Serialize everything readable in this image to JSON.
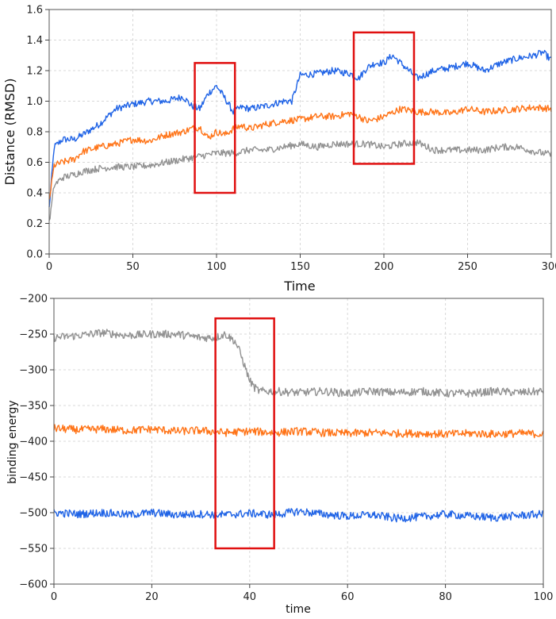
{
  "chart_data": [
    {
      "type": "line",
      "ylabel": "Distance (RMSD)",
      "xlabel": "Time",
      "xlim": [
        0,
        300
      ],
      "ylim": [
        0.0,
        1.6
      ],
      "xticks": [
        0,
        50,
        100,
        150,
        200,
        250,
        300
      ],
      "xtick_labels": [
        "0",
        "50",
        "100",
        "150",
        "200",
        "250",
        "300"
      ],
      "yticks": [
        0.0,
        0.2,
        0.4,
        0.6,
        0.8,
        1.0,
        1.2,
        1.4,
        1.6
      ],
      "ytick_labels": [
        "0.0",
        "0.2",
        "0.4",
        "0.6",
        "0.8",
        "1.0",
        "1.2",
        "1.4",
        "1.6"
      ],
      "grid": true,
      "series": [
        {
          "color": "#1f63e6",
          "x": [
            0,
            3,
            8,
            15,
            20,
            30,
            40,
            50,
            60,
            70,
            80,
            85,
            90,
            95,
            100,
            105,
            110,
            115,
            120,
            130,
            140,
            145,
            150,
            160,
            170,
            180,
            185,
            190,
            195,
            200,
            205,
            210,
            215,
            220,
            230,
            240,
            250,
            260,
            270,
            280,
            290,
            295,
            300
          ],
          "values": [
            0.3,
            0.7,
            0.75,
            0.75,
            0.78,
            0.85,
            0.95,
            0.98,
            1.0,
            1.0,
            1.03,
            0.97,
            0.95,
            1.05,
            1.1,
            1.02,
            0.93,
            0.96,
            0.95,
            0.97,
            1.0,
            1.0,
            1.17,
            1.18,
            1.2,
            1.18,
            1.15,
            1.22,
            1.25,
            1.25,
            1.3,
            1.25,
            1.2,
            1.15,
            1.2,
            1.22,
            1.25,
            1.2,
            1.25,
            1.28,
            1.3,
            1.32,
            1.27
          ]
        },
        {
          "color": "#ff7418",
          "x": [
            0,
            3,
            8,
            15,
            20,
            30,
            40,
            50,
            60,
            70,
            80,
            85,
            90,
            95,
            100,
            105,
            110,
            115,
            120,
            130,
            140,
            150,
            160,
            170,
            180,
            185,
            190,
            195,
            200,
            210,
            220,
            230,
            240,
            250,
            260,
            270,
            280,
            290,
            300
          ],
          "values": [
            0.35,
            0.58,
            0.6,
            0.62,
            0.67,
            0.7,
            0.72,
            0.75,
            0.74,
            0.78,
            0.8,
            0.82,
            0.83,
            0.76,
            0.8,
            0.78,
            0.82,
            0.84,
            0.82,
            0.85,
            0.87,
            0.88,
            0.9,
            0.9,
            0.92,
            0.9,
            0.87,
            0.88,
            0.9,
            0.95,
            0.93,
            0.93,
            0.92,
            0.95,
            0.93,
            0.94,
            0.95,
            0.96,
            0.95
          ]
        },
        {
          "color": "#929292",
          "x": [
            0,
            3,
            8,
            15,
            20,
            30,
            40,
            50,
            60,
            70,
            80,
            90,
            95,
            100,
            110,
            120,
            130,
            140,
            150,
            160,
            170,
            180,
            190,
            200,
            210,
            220,
            230,
            240,
            250,
            260,
            270,
            280,
            290,
            300
          ],
          "values": [
            0.2,
            0.45,
            0.5,
            0.52,
            0.54,
            0.56,
            0.57,
            0.57,
            0.58,
            0.6,
            0.62,
            0.64,
            0.65,
            0.66,
            0.66,
            0.68,
            0.68,
            0.7,
            0.72,
            0.7,
            0.72,
            0.72,
            0.72,
            0.7,
            0.72,
            0.73,
            0.68,
            0.68,
            0.68,
            0.68,
            0.7,
            0.7,
            0.67,
            0.65
          ]
        }
      ],
      "highlight_boxes": [
        {
          "x": [
            87,
            111
          ],
          "y": [
            0.4,
            1.25
          ]
        },
        {
          "x": [
            182,
            218
          ],
          "y": [
            0.59,
            1.45
          ]
        }
      ]
    },
    {
      "type": "line",
      "ylabel": "binding energy",
      "xlabel": "time",
      "xlim": [
        0,
        100
      ],
      "ylim": [
        -600,
        -200
      ],
      "xticks": [
        0,
        20,
        40,
        60,
        80,
        100
      ],
      "xtick_labels": [
        "0",
        "20",
        "40",
        "60",
        "80",
        "100"
      ],
      "yticks": [
        -600,
        -550,
        -500,
        -450,
        -400,
        -350,
        -300,
        -250,
        -200
      ],
      "ytick_labels": [
        "−600",
        "−550",
        "−500",
        "−450",
        "−400",
        "−350",
        "−300",
        "−250",
        "−200"
      ],
      "grid": true,
      "series": [
        {
          "color": "#929292",
          "x": [
            0,
            5,
            10,
            15,
            20,
            25,
            30,
            33,
            35,
            37,
            38,
            39,
            40,
            41,
            42,
            45,
            50,
            55,
            60,
            65,
            70,
            75,
            80,
            85,
            90,
            95,
            100
          ],
          "values": [
            -255,
            -252,
            -248,
            -252,
            -250,
            -250,
            -255,
            -255,
            -250,
            -260,
            -275,
            -295,
            -315,
            -325,
            -330,
            -330,
            -332,
            -330,
            -333,
            -330,
            -332,
            -330,
            -333,
            -333,
            -330,
            -332,
            -330
          ]
        },
        {
          "color": "#ff7418",
          "x": [
            0,
            5,
            10,
            15,
            20,
            25,
            30,
            35,
            40,
            45,
            50,
            55,
            60,
            65,
            70,
            75,
            80,
            85,
            90,
            95,
            100
          ],
          "values": [
            -382,
            -384,
            -383,
            -385,
            -383,
            -386,
            -385,
            -388,
            -386,
            -388,
            -386,
            -388,
            -389,
            -388,
            -389,
            -389,
            -390,
            -389,
            -390,
            -389,
            -390
          ]
        },
        {
          "color": "#1f63e6",
          "x": [
            0,
            5,
            10,
            15,
            20,
            25,
            30,
            35,
            40,
            45,
            50,
            55,
            60,
            65,
            70,
            75,
            80,
            85,
            90,
            95,
            100
          ],
          "values": [
            -500,
            -502,
            -500,
            -503,
            -500,
            -503,
            -502,
            -503,
            -501,
            -503,
            -498,
            -502,
            -505,
            -503,
            -508,
            -506,
            -502,
            -505,
            -507,
            -504,
            -502
          ]
        }
      ],
      "highlight_boxes": [
        {
          "x": [
            33,
            45
          ],
          "y": [
            -550,
            -228
          ]
        }
      ]
    }
  ]
}
